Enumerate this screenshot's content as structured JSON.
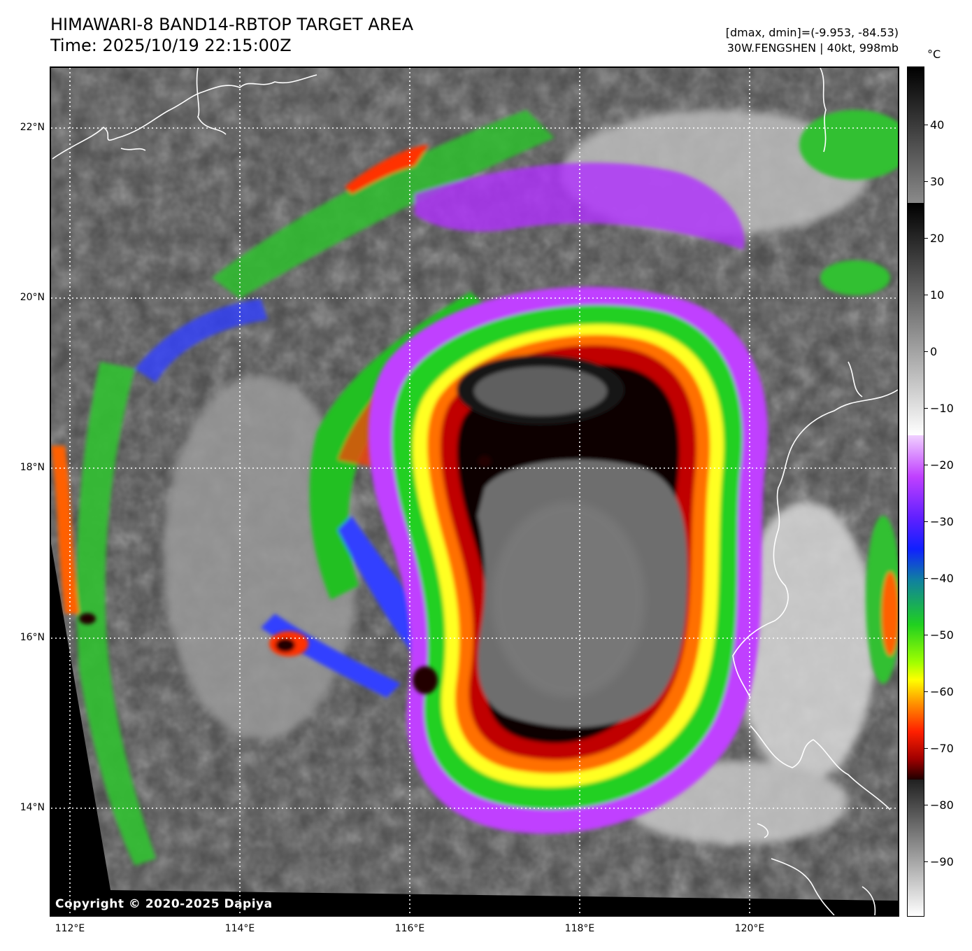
{
  "header": {
    "title_line1": "HIMAWARI-8 BAND14-RBTOP TARGET AREA",
    "title_line2": "Time: 2025/10/19 22:15:00Z",
    "info_line1": "[dmax, dmin]=(-9.953, -84.53)",
    "info_line2": "30W.FENGSHEN | 40kt, 998mb"
  },
  "map": {
    "latitude_labels": [
      "22°N",
      "20°N",
      "18°N",
      "16°N",
      "14°N"
    ],
    "longitude_labels": [
      "112°E",
      "114°E",
      "116°E",
      "118°E",
      "120°E"
    ],
    "copyright": "Copyright © 2020-2025 Dapiya"
  },
  "colorbar": {
    "unit": "°C",
    "tick_labels": [
      "40",
      "30",
      "20",
      "10",
      "0",
      "−10",
      "−20",
      "−30",
      "−40",
      "−50",
      "−60",
      "−70",
      "−80",
      "−90"
    ],
    "range_c": [
      -100,
      50
    ]
  },
  "colors": {
    "gray_band_top": "#202020",
    "magenta_band": "#c040ff",
    "blue_band": "#1020ff",
    "green_band": "#20c020",
    "yellow_band": "#ffff00",
    "orange_band": "#ff8000",
    "red_band": "#d00000",
    "black_band": "#000000",
    "coastline": "#ffffff",
    "grid": "#ffffff"
  }
}
